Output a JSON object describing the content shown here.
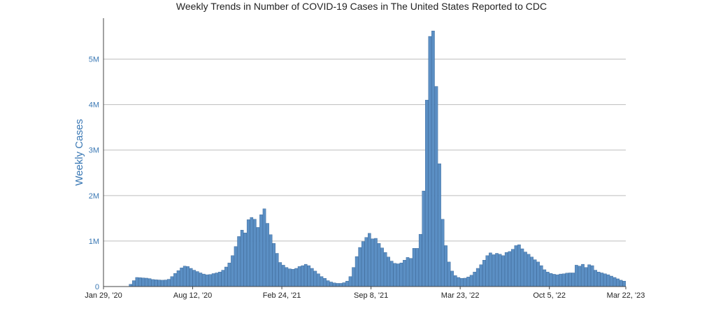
{
  "chart_data": {
    "type": "bar",
    "title": "Weekly Trends in Number of COVID-19 Cases in The United States Reported to CDC",
    "xlabel": "",
    "ylabel": "Weekly Cases",
    "ylim": [
      0,
      5900000
    ],
    "yticks": [
      {
        "value": 0,
        "label": "0"
      },
      {
        "value": 1000000,
        "label": "1M"
      },
      {
        "value": 2000000,
        "label": "2M"
      },
      {
        "value": 3000000,
        "label": "3M"
      },
      {
        "value": 4000000,
        "label": "4M"
      },
      {
        "value": 5000000,
        "label": "5M"
      }
    ],
    "xticks": [
      {
        "week": 0,
        "label": "Jan 29, '20"
      },
      {
        "week": 28,
        "label": "Aug 12, '20"
      },
      {
        "week": 56,
        "label": "Feb 24, '21"
      },
      {
        "week": 84,
        "label": "Sep 8, '21"
      },
      {
        "week": 112,
        "label": "Mar 23, '22"
      },
      {
        "week": 140,
        "label": "Oct 5, '22"
      },
      {
        "week": 164,
        "label": "Mar 22, '23"
      }
    ],
    "grid": true,
    "legend": "none",
    "color": "#5b8fc4",
    "first_week": "Jan 29, '20",
    "week_interval_days": 7,
    "values": [
      0,
      0,
      0,
      0,
      0,
      0,
      0,
      0,
      50000,
      130000,
      200000,
      195000,
      190000,
      185000,
      175000,
      155000,
      150000,
      145000,
      140000,
      145000,
      160000,
      220000,
      290000,
      350000,
      410000,
      450000,
      440000,
      400000,
      360000,
      330000,
      300000,
      275000,
      260000,
      265000,
      285000,
      300000,
      320000,
      360000,
      430000,
      520000,
      680000,
      880000,
      1100000,
      1240000,
      1180000,
      1470000,
      1520000,
      1480000,
      1300000,
      1580000,
      1710000,
      1390000,
      1140000,
      950000,
      730000,
      530000,
      470000,
      420000,
      390000,
      380000,
      400000,
      440000,
      460000,
      490000,
      460000,
      400000,
      340000,
      280000,
      220000,
      180000,
      130000,
      100000,
      80000,
      70000,
      70000,
      85000,
      120000,
      220000,
      420000,
      660000,
      860000,
      990000,
      1080000,
      1170000,
      1050000,
      1060000,
      950000,
      850000,
      750000,
      650000,
      560000,
      510000,
      500000,
      520000,
      580000,
      640000,
      620000,
      840000,
      840000,
      1150000,
      2100000,
      4100000,
      5500000,
      5620000,
      4400000,
      2700000,
      1480000,
      900000,
      540000,
      340000,
      240000,
      200000,
      180000,
      185000,
      210000,
      250000,
      320000,
      400000,
      480000,
      580000,
      680000,
      740000,
      700000,
      730000,
      710000,
      680000,
      750000,
      770000,
      820000,
      900000,
      920000,
      830000,
      760000,
      710000,
      650000,
      590000,
      540000,
      460000,
      370000,
      320000,
      290000,
      270000,
      260000,
      275000,
      280000,
      295000,
      300000,
      300000,
      470000,
      450000,
      490000,
      420000,
      480000,
      460000,
      360000,
      320000,
      300000,
      280000,
      260000,
      230000,
      200000,
      170000,
      140000,
      120000
    ]
  }
}
